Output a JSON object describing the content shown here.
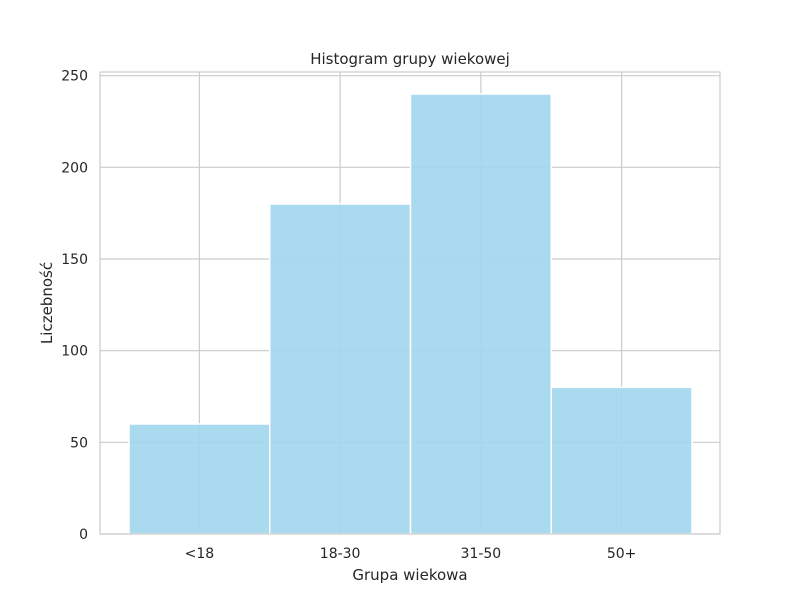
{
  "chart_data": {
    "type": "bar",
    "title": "Histogram grupy wiekowej",
    "xlabel": "Grupa wiekowa",
    "ylabel": "Liczebność",
    "categories": [
      "<18",
      "18-30",
      "31-50",
      "50+"
    ],
    "values": [
      60,
      180,
      240,
      80
    ],
    "ylim": [
      0,
      252
    ],
    "yticks": [
      0,
      50,
      100,
      150,
      200,
      250
    ],
    "grid": true,
    "bar_color": "#a3d7ef",
    "grid_color": "#cccccc"
  }
}
